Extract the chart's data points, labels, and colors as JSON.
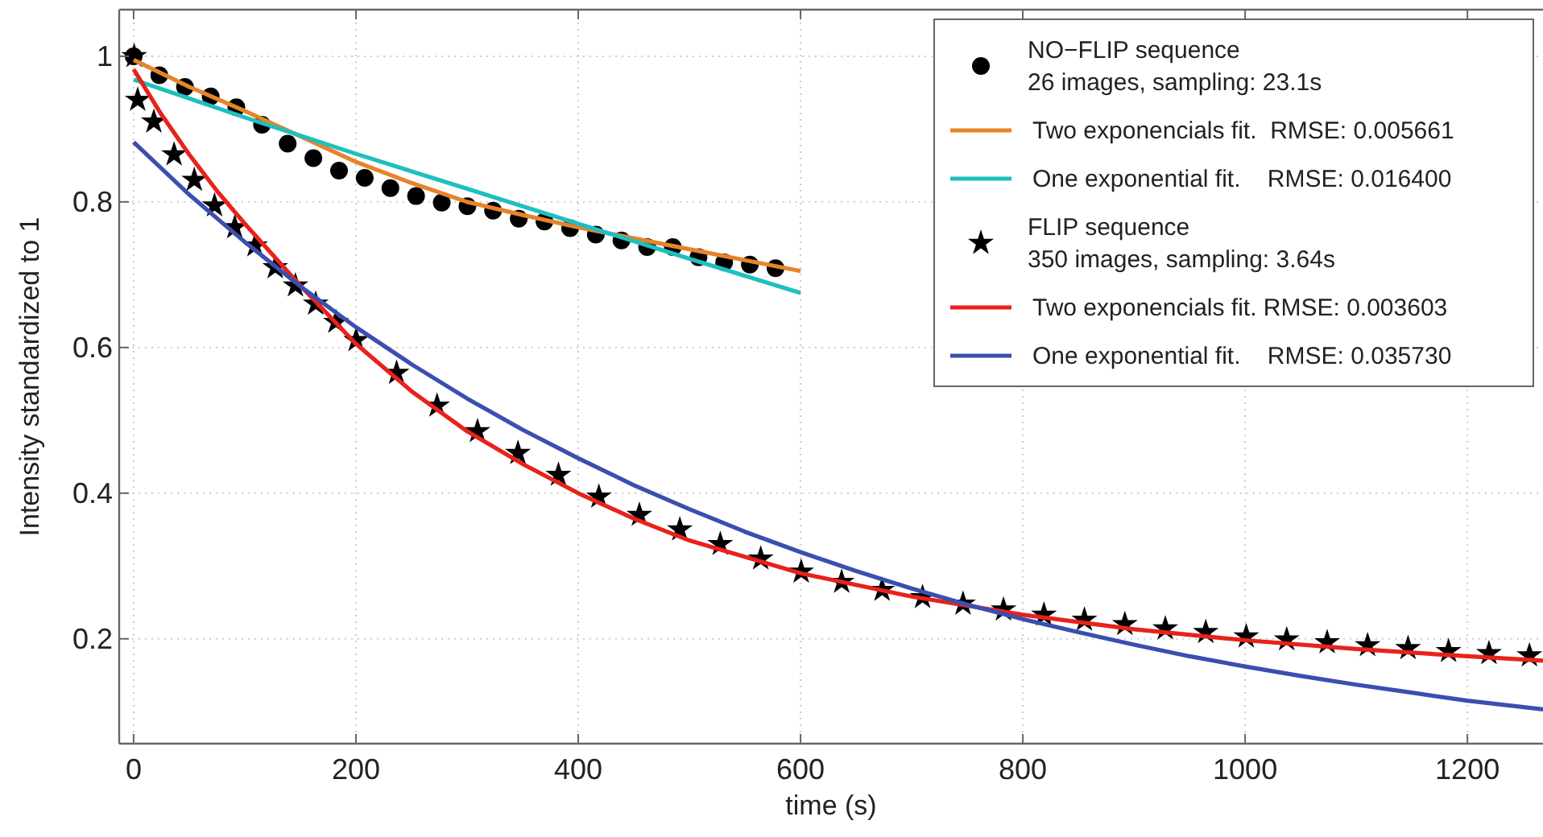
{
  "chart_data": {
    "type": "scatter",
    "xlabel": "time (s)",
    "ylabel": "Intensity standardized to 1",
    "xlim": [
      -13,
      1268
    ],
    "xticks": [
      0,
      200,
      400,
      600,
      800,
      1000,
      1200
    ],
    "ylim": [
      0.056,
      1.064
    ],
    "yticks": [
      0.2,
      0.4,
      0.6,
      0.8,
      1
    ],
    "grid": true,
    "legend": "top right",
    "series": [
      {
        "name": "NO−FLIP sequence\n26 images, sampling: 23.1s",
        "type": "scatter",
        "marker": "circle",
        "color": "#000000",
        "x": [
          0,
          23.1,
          46.2,
          69.3,
          92.4,
          115.5,
          138.6,
          161.7,
          184.8,
          207.9,
          231,
          254.1,
          277.2,
          300.3,
          323.4,
          346.5,
          369.6,
          392.7,
          415.8,
          438.9,
          462,
          485.1,
          508.2,
          531.3,
          554.4,
          577.5
        ],
        "values": [
          1.0,
          0.974,
          0.958,
          0.945,
          0.93,
          0.906,
          0.88,
          0.86,
          0.843,
          0.833,
          0.819,
          0.808,
          0.799,
          0.794,
          0.788,
          0.777,
          0.773,
          0.764,
          0.755,
          0.747,
          0.738,
          0.738,
          0.724,
          0.717,
          0.714,
          0.709
        ]
      },
      {
        "name": "Two exponencials fit.  RMSE: 0.005661",
        "type": "line",
        "marker": "none",
        "color": "#e6842a",
        "x": [
          0,
          50,
          100,
          150,
          200,
          250,
          300,
          350,
          400,
          450,
          500,
          550,
          600
        ],
        "values": [
          0.995,
          0.958,
          0.925,
          0.89,
          0.855,
          0.826,
          0.8,
          0.782,
          0.765,
          0.75,
          0.735,
          0.72,
          0.705
        ]
      },
      {
        "name": "One exponential fit.    RMSE: 0.016400",
        "type": "line",
        "marker": "none",
        "color": "#1fbfbf",
        "x": [
          0,
          100,
          200,
          300,
          400,
          500,
          600
        ],
        "values": [
          0.968,
          0.916,
          0.866,
          0.818,
          0.77,
          0.722,
          0.675
        ]
      },
      {
        "name": "FLIP sequence\n350 images, sampling: 3.64s",
        "type": "scatter",
        "marker": "star",
        "color": "#000000",
        "x": [
          0.5,
          3.64,
          18.2,
          36.4,
          54.6,
          72.8,
          91,
          109.2,
          127.4,
          145.6,
          163.8,
          182,
          200.2,
          236.6,
          273,
          309.4,
          345.8,
          382.2,
          418.6,
          455,
          491.4,
          527.8,
          564.2,
          600.6,
          637,
          673.4,
          709.8,
          746.2,
          782.6,
          819,
          855.4,
          891.8,
          928.2,
          964.6,
          1001,
          1037.4,
          1073.8,
          1110.2,
          1146.6,
          1183,
          1219.4,
          1255.8
        ],
        "values": [
          1.0,
          0.94,
          0.91,
          0.865,
          0.83,
          0.795,
          0.765,
          0.74,
          0.71,
          0.685,
          0.66,
          0.635,
          0.61,
          0.565,
          0.52,
          0.485,
          0.455,
          0.425,
          0.395,
          0.37,
          0.35,
          0.33,
          0.31,
          0.292,
          0.278,
          0.267,
          0.257,
          0.248,
          0.24,
          0.233,
          0.226,
          0.22,
          0.214,
          0.209,
          0.203,
          0.199,
          0.195,
          0.191,
          0.187,
          0.183,
          0.18,
          0.177
        ]
      },
      {
        "name": "Two exponencials fit. RMSE: 0.003603",
        "type": "line",
        "marker": "none",
        "color": "#e8221b",
        "x": [
          0,
          25,
          50,
          75,
          100,
          150,
          200,
          250,
          300,
          350,
          400,
          450,
          500,
          600,
          700,
          800,
          900,
          1000,
          1100,
          1200,
          1268
        ],
        "values": [
          0.982,
          0.92,
          0.865,
          0.815,
          0.77,
          0.685,
          0.605,
          0.54,
          0.485,
          0.44,
          0.4,
          0.365,
          0.335,
          0.29,
          0.258,
          0.233,
          0.213,
          0.198,
          0.186,
          0.176,
          0.17
        ]
      },
      {
        "name": "One exponential fit.    RMSE: 0.035730",
        "type": "line",
        "marker": "none",
        "color": "#3a4fb0",
        "x": [
          0,
          50,
          100,
          150,
          200,
          250,
          300,
          350,
          400,
          450,
          500,
          550,
          600,
          650,
          700,
          750,
          800,
          850,
          900,
          950,
          1000,
          1050,
          1100,
          1150,
          1200,
          1268
        ],
        "values": [
          0.882,
          0.81,
          0.745,
          0.684,
          0.628,
          0.577,
          0.53,
          0.487,
          0.448,
          0.411,
          0.378,
          0.347,
          0.319,
          0.293,
          0.269,
          0.247,
          0.227,
          0.209,
          0.192,
          0.176,
          0.162,
          0.149,
          0.137,
          0.126,
          0.115,
          0.103
        ]
      }
    ]
  }
}
